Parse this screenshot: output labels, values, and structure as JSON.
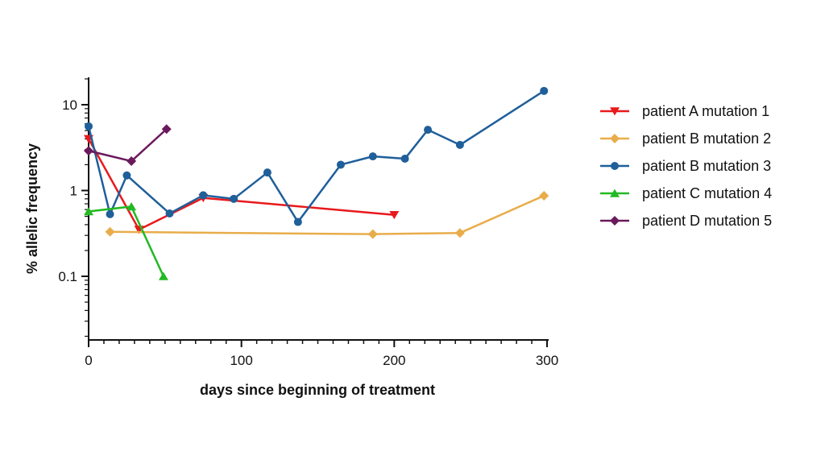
{
  "chart_data": {
    "type": "line",
    "xlabel": "days since beginning of treatment",
    "ylabel": "% allelic frequency",
    "xlim": [
      0,
      300
    ],
    "ylim": [
      0.02,
      20
    ],
    "yscale": "log",
    "x_ticks": [
      0,
      100,
      200,
      300
    ],
    "y_ticks": [
      0.1,
      1,
      10
    ],
    "y_tick_labels": [
      "0.1",
      "1",
      "10"
    ],
    "grid": false,
    "legend_position": "right",
    "series": [
      {
        "name": "patient A mutation 1",
        "color": "#e8191c",
        "marker": "triangle-down",
        "x": [
          0,
          33,
          75,
          200
        ],
        "y": [
          4.0,
          0.35,
          0.82,
          0.52
        ]
      },
      {
        "name": "patient B mutation 2",
        "color": "#e8ad4a",
        "marker": "diamond",
        "x": [
          14,
          186,
          243,
          298
        ],
        "y": [
          0.33,
          0.31,
          0.32,
          0.87
        ]
      },
      {
        "name": "patient B mutation 3",
        "color": "#1f5f9a",
        "marker": "circle",
        "x": [
          0,
          14,
          25,
          53,
          75,
          95,
          117,
          137,
          165,
          186,
          207,
          222,
          243,
          298
        ],
        "y": [
          5.6,
          0.53,
          1.5,
          0.54,
          0.88,
          0.8,
          1.62,
          0.43,
          2.0,
          2.5,
          2.35,
          5.1,
          3.4,
          14.5
        ]
      },
      {
        "name": "patient C mutation 4",
        "color": "#22b922",
        "marker": "triangle-up",
        "x": [
          0,
          28,
          49
        ],
        "y": [
          0.57,
          0.65,
          0.1
        ]
      },
      {
        "name": "patient D mutation 5",
        "color": "#6a1a5c",
        "marker": "diamond",
        "x": [
          0,
          28,
          51
        ],
        "y": [
          2.9,
          2.2,
          5.2
        ]
      }
    ]
  }
}
